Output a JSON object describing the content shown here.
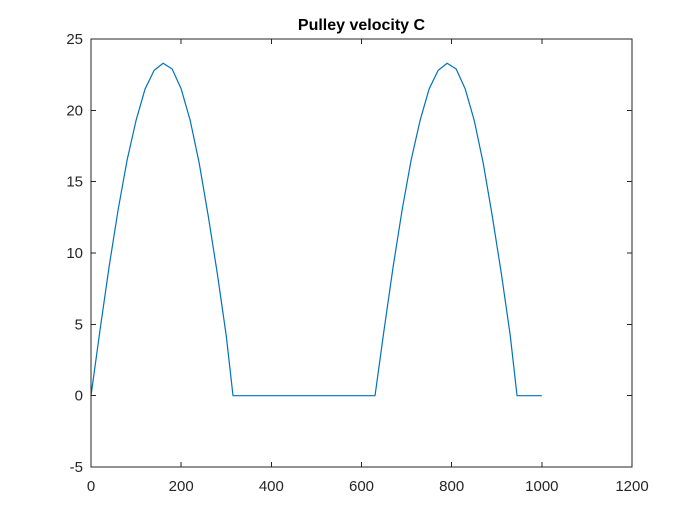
{
  "chart_data": {
    "type": "line",
    "title": "Pulley velocity C",
    "xlabel": "",
    "ylabel": "",
    "xlim": [
      0,
      1200
    ],
    "ylim": [
      -5,
      25
    ],
    "xticks": [
      0,
      200,
      400,
      600,
      800,
      1000,
      1200
    ],
    "yticks": [
      -5,
      0,
      5,
      10,
      15,
      20,
      25
    ],
    "grid": false,
    "series": [
      {
        "color": "#0072BD",
        "x": [
          0,
          20,
          40,
          60,
          80,
          100,
          120,
          140,
          160,
          180,
          200,
          220,
          240,
          260,
          280,
          300,
          315,
          630,
          650,
          670,
          690,
          710,
          730,
          750,
          770,
          790,
          810,
          830,
          850,
          870,
          890,
          910,
          930,
          945,
          1000
        ],
        "y": [
          0,
          4.6,
          9.0,
          13.0,
          16.5,
          19.3,
          21.5,
          22.8,
          23.3,
          22.9,
          21.5,
          19.3,
          16.3,
          12.6,
          8.6,
          4.2,
          0,
          0,
          4.6,
          9.0,
          13.0,
          16.5,
          19.3,
          21.5,
          22.8,
          23.3,
          22.9,
          21.5,
          19.3,
          16.3,
          12.6,
          8.6,
          4.2,
          0,
          0
        ]
      }
    ]
  }
}
